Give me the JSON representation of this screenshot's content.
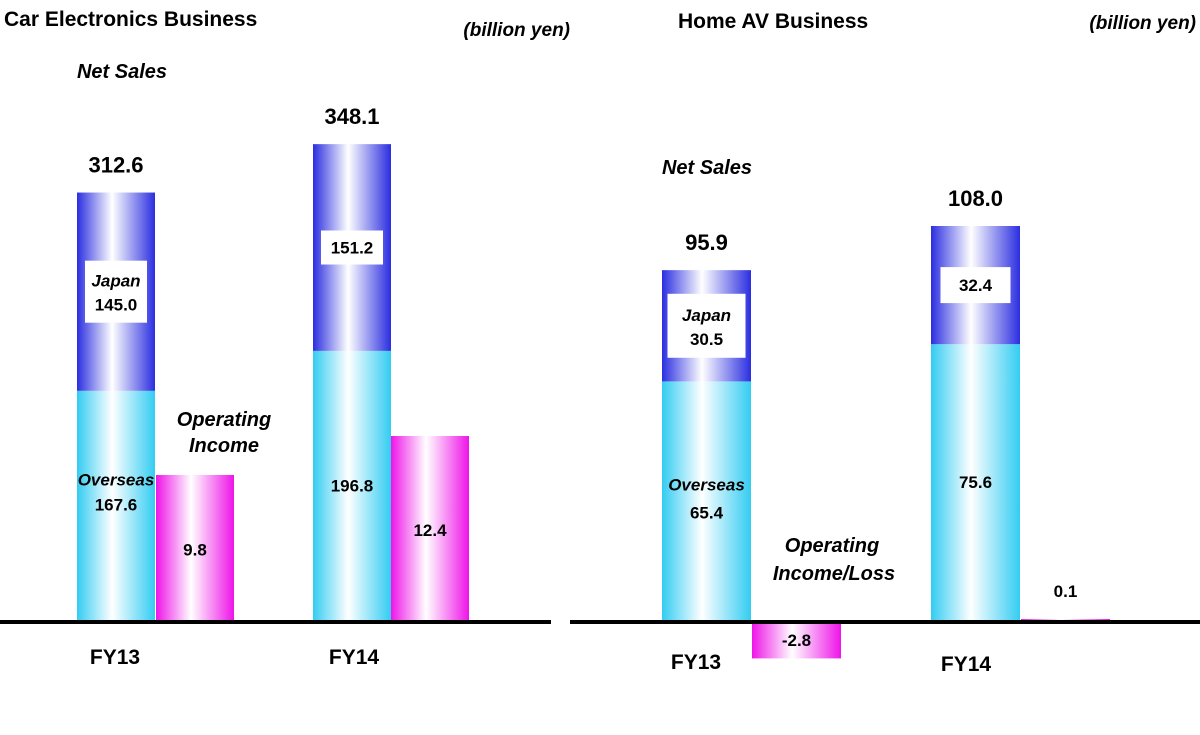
{
  "unit_label": "(billion yen)",
  "colors": {
    "japan": "#2b2ee0",
    "overseas": "#33ccf2",
    "operating": "#ee14e8",
    "axis": "#000000",
    "label_box": "#ffffff"
  },
  "chart_data": [
    {
      "type": "bar",
      "title": "Car Electronics Business",
      "unit": "(billion yen)",
      "categories": [
        "FY13",
        "FY14"
      ],
      "stack_labels": {
        "japan": "Japan",
        "overseas": "Overseas",
        "total": "Net Sales",
        "income": "Operating Income"
      },
      "net_sales": [
        312.6,
        348.1
      ],
      "series": [
        {
          "name": "Japan",
          "values": [
            145.0,
            151.2
          ]
        },
        {
          "name": "Overseas",
          "values": [
            167.6,
            196.8
          ]
        },
        {
          "name": "Operating Income",
          "values": [
            9.8,
            12.4
          ]
        }
      ]
    },
    {
      "type": "bar",
      "title": "Home AV Business",
      "unit": "(billion yen)",
      "categories": [
        "FY13",
        "FY14"
      ],
      "stack_labels": {
        "japan": "Japan",
        "overseas": "Overseas",
        "total": "Net Sales",
        "income": "Operating Income/Loss"
      },
      "net_sales": [
        95.9,
        108.0
      ],
      "series": [
        {
          "name": "Japan",
          "values": [
            30.5,
            32.4
          ]
        },
        {
          "name": "Overseas",
          "values": [
            65.4,
            75.6
          ]
        },
        {
          "name": "Operating Income/Loss",
          "values": [
            -2.8,
            0.1
          ]
        }
      ]
    }
  ]
}
